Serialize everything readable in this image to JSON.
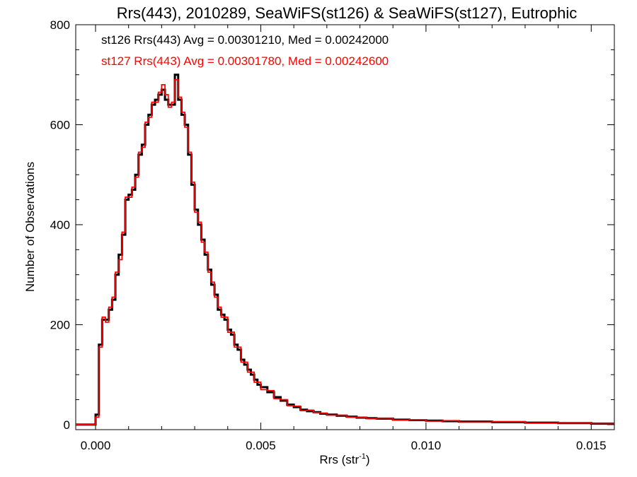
{
  "chart_data": {
    "type": "line",
    "subtype": "step-histogram",
    "title": "Rrs(443), 2010289, SeaWiFS(st126) & SeaWiFS(st127), Eutrophic",
    "xlabel": "Rrs (str",
    "xlabel_sup": "-1",
    "xlabel_end": ")",
    "ylabel": "Number of Observations",
    "xlim": [
      -0.0006,
      0.0157
    ],
    "ylim": [
      -10,
      800
    ],
    "xticks": [
      0.0,
      0.005,
      0.01,
      0.015
    ],
    "xtick_labels": [
      "0.000",
      "0.005",
      "0.010",
      "0.015"
    ],
    "yticks": [
      0,
      200,
      400,
      600,
      800
    ],
    "ytick_labels": [
      "0",
      "200",
      "400",
      "600",
      "800"
    ],
    "grid": false,
    "annotations": [
      {
        "text": "st126 Rrs(443) Avg = 0.00301210, Med = 0.00242000",
        "color": "#000000"
      },
      {
        "text": "st127 Rrs(443) Avg = 0.00301780, Med = 0.00242600",
        "color": "#ff0000"
      }
    ],
    "series": [
      {
        "color": "#000000",
        "x": [
          -0.0006,
          0.0,
          0.0001,
          0.0002,
          0.0003,
          0.0004,
          0.0005,
          0.0006,
          0.0007,
          0.0008,
          0.0009,
          0.001,
          0.0011,
          0.0012,
          0.0013,
          0.0014,
          0.0015,
          0.0016,
          0.0017,
          0.0018,
          0.0019,
          0.002,
          0.0021,
          0.0022,
          0.0023,
          0.0024,
          0.0025,
          0.0026,
          0.0027,
          0.0028,
          0.0029,
          0.003,
          0.0031,
          0.0032,
          0.0033,
          0.0034,
          0.0035,
          0.0036,
          0.0037,
          0.0038,
          0.0039,
          0.004,
          0.0041,
          0.0042,
          0.0043,
          0.0044,
          0.0045,
          0.0046,
          0.0047,
          0.0048,
          0.0049,
          0.005,
          0.0052,
          0.0054,
          0.0056,
          0.0058,
          0.006,
          0.0062,
          0.0064,
          0.0066,
          0.0068,
          0.007,
          0.0073,
          0.0076,
          0.0079,
          0.0082,
          0.0085,
          0.009,
          0.0095,
          0.01,
          0.0105,
          0.011,
          0.012,
          0.013,
          0.014,
          0.015,
          0.0157
        ],
        "values": [
          0,
          20,
          160,
          210,
          210,
          230,
          250,
          300,
          340,
          380,
          450,
          460,
          470,
          500,
          540,
          560,
          600,
          620,
          640,
          650,
          660,
          670,
          650,
          640,
          640,
          700,
          650,
          620,
          600,
          540,
          480,
          430,
          400,
          370,
          340,
          310,
          280,
          260,
          230,
          220,
          210,
          190,
          180,
          160,
          150,
          130,
          120,
          110,
          100,
          90,
          80,
          75,
          65,
          55,
          48,
          40,
          35,
          30,
          27,
          25,
          22,
          20,
          18,
          16,
          14,
          13,
          12,
          10,
          9,
          8,
          7,
          6,
          5,
          4,
          3,
          2,
          2
        ]
      },
      {
        "color": "#ff0000",
        "x": [
          -0.0006,
          0.0,
          0.0001,
          0.0002,
          0.0003,
          0.0004,
          0.0005,
          0.0006,
          0.0007,
          0.0008,
          0.0009,
          0.001,
          0.0011,
          0.0012,
          0.0013,
          0.0014,
          0.0015,
          0.0016,
          0.0017,
          0.0018,
          0.0019,
          0.002,
          0.0021,
          0.0022,
          0.0023,
          0.0024,
          0.0025,
          0.0026,
          0.0027,
          0.0028,
          0.0029,
          0.003,
          0.0031,
          0.0032,
          0.0033,
          0.0034,
          0.0035,
          0.0036,
          0.0037,
          0.0038,
          0.0039,
          0.004,
          0.0041,
          0.0042,
          0.0043,
          0.0044,
          0.0045,
          0.0046,
          0.0047,
          0.0048,
          0.0049,
          0.005,
          0.0052,
          0.0054,
          0.0056,
          0.0058,
          0.006,
          0.0062,
          0.0064,
          0.0066,
          0.0068,
          0.007,
          0.0073,
          0.0076,
          0.0079,
          0.0082,
          0.0085,
          0.009,
          0.0095,
          0.01,
          0.0105,
          0.011,
          0.012,
          0.013,
          0.014,
          0.015,
          0.0157
        ],
        "values": [
          0,
          15,
          155,
          215,
          205,
          235,
          255,
          305,
          330,
          385,
          455,
          455,
          475,
          495,
          545,
          555,
          605,
          615,
          645,
          645,
          665,
          680,
          660,
          635,
          645,
          690,
          655,
          625,
          595,
          545,
          485,
          425,
          405,
          365,
          345,
          305,
          285,
          255,
          235,
          215,
          215,
          185,
          185,
          155,
          155,
          125,
          125,
          105,
          105,
          85,
          85,
          70,
          68,
          52,
          50,
          38,
          37,
          28,
          29,
          24,
          23,
          19,
          19,
          15,
          15,
          12,
          13,
          9,
          10,
          7,
          8,
          5,
          6,
          3,
          4,
          2,
          2
        ]
      }
    ]
  }
}
